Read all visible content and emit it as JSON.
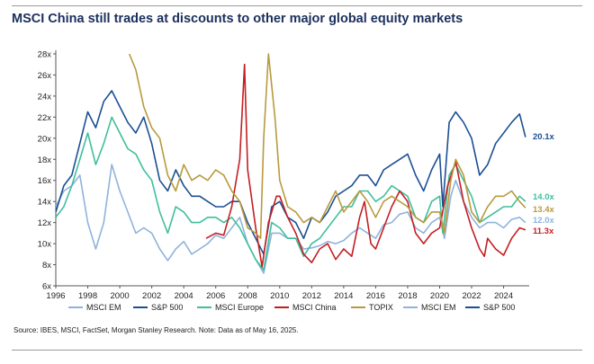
{
  "title": "MSCI China still trades at discounts to other major global equity markets",
  "source": "Source: IBES, MSCI, FactSet, Morgan Stanley Research. Note: Data as of May 16, 2025.",
  "colors": {
    "msci_em": "#8fb3dd",
    "sp500": "#1b4f93",
    "msci_europe": "#3fbf9b",
    "msci_china": "#c41e22",
    "topix": "#b89a3e"
  },
  "chart_data": {
    "type": "line",
    "title": "MSCI China still trades at discounts to other major global equity markets",
    "xlabel": "",
    "ylabel": "",
    "xlim": [
      1996,
      2025.6
    ],
    "ylim": [
      6,
      28
    ],
    "x_ticks": [
      "1996",
      "1998",
      "2000",
      "2002",
      "2004",
      "2006",
      "2008",
      "2010",
      "2012",
      "2014",
      "2016",
      "2018",
      "2020",
      "2022",
      "2024"
    ],
    "y_ticks": [
      "6x",
      "8x",
      "10x",
      "12x",
      "14x",
      "16x",
      "18x",
      "20x",
      "22x",
      "24x",
      "26x",
      "28x"
    ],
    "grid": false,
    "legend_position": "bottom",
    "legend": [
      "MSCI EM",
      "S&P 500",
      "MSCI Europe",
      "MSCI China",
      "TOPIX",
      "MSCI EM",
      "S&P 500"
    ],
    "end_labels": [
      {
        "text": "20.1x",
        "series": "S&P 500",
        "value": 20.1
      },
      {
        "text": "14.0x",
        "series": "MSCI Europe",
        "value": 14.0
      },
      {
        "text": "13.4x",
        "series": "TOPIX",
        "value": 13.4
      },
      {
        "text": "12.0x",
        "series": "MSCI EM",
        "value": 12.0
      },
      {
        "text": "11.3x",
        "series": "MSCI China",
        "value": 11.3
      }
    ],
    "series": [
      {
        "name": "MSCI EM",
        "color": "#8fb3dd",
        "points": [
          [
            1996,
            13.5
          ],
          [
            1996.5,
            15.0
          ],
          [
            1997,
            15.5
          ],
          [
            1997.5,
            16.5
          ],
          [
            1998,
            12.0
          ],
          [
            1998.5,
            9.5
          ],
          [
            1999,
            12.0
          ],
          [
            1999.5,
            17.5
          ],
          [
            2000,
            15.0
          ],
          [
            2000.5,
            13.0
          ],
          [
            2001,
            11.0
          ],
          [
            2001.5,
            11.5
          ],
          [
            2002,
            11.0
          ],
          [
            2002.5,
            9.5
          ],
          [
            2003,
            8.4
          ],
          [
            2003.5,
            9.5
          ],
          [
            2004,
            10.2
          ],
          [
            2004.5,
            9.0
          ],
          [
            2005,
            9.5
          ],
          [
            2005.5,
            10.0
          ],
          [
            2006,
            10.8
          ],
          [
            2006.5,
            10.5
          ],
          [
            2007,
            11.5
          ],
          [
            2007.5,
            12.5
          ],
          [
            2008,
            10.0
          ],
          [
            2008.5,
            8.5
          ],
          [
            2009,
            7.2
          ],
          [
            2009.5,
            11.0
          ],
          [
            2010,
            11.0
          ],
          [
            2010.5,
            10.5
          ],
          [
            2011,
            10.5
          ],
          [
            2011.5,
            9.5
          ],
          [
            2012,
            9.6
          ],
          [
            2012.5,
            9.8
          ],
          [
            2013,
            10.2
          ],
          [
            2013.5,
            10.0
          ],
          [
            2014,
            10.3
          ],
          [
            2014.5,
            11.0
          ],
          [
            2015,
            11.5
          ],
          [
            2015.5,
            11.0
          ],
          [
            2016,
            10.5
          ],
          [
            2016.5,
            11.8
          ],
          [
            2017,
            12.0
          ],
          [
            2017.5,
            12.8
          ],
          [
            2018,
            13.0
          ],
          [
            2018.5,
            11.5
          ],
          [
            2019,
            11.0
          ],
          [
            2019.5,
            12.0
          ],
          [
            2020,
            12.5
          ],
          [
            2020.3,
            10.5
          ],
          [
            2020.7,
            14.5
          ],
          [
            2021,
            16.0
          ],
          [
            2021.5,
            14.0
          ],
          [
            2022,
            12.5
          ],
          [
            2022.5,
            11.5
          ],
          [
            2023,
            12.0
          ],
          [
            2023.5,
            12.0
          ],
          [
            2024,
            11.5
          ],
          [
            2024.5,
            12.3
          ],
          [
            2025,
            12.5
          ],
          [
            2025.37,
            12.0
          ]
        ]
      },
      {
        "name": "S&P 500",
        "color": "#1b4f93",
        "points": [
          [
            1996,
            13.0
          ],
          [
            1996.5,
            15.5
          ],
          [
            1997,
            16.5
          ],
          [
            1997.5,
            19.5
          ],
          [
            1998,
            22.5
          ],
          [
            1998.5,
            21.0
          ],
          [
            1999,
            23.5
          ],
          [
            1999.5,
            24.5
          ],
          [
            2000,
            23.0
          ],
          [
            2000.5,
            21.5
          ],
          [
            2001,
            20.5
          ],
          [
            2001.5,
            22.0
          ],
          [
            2002,
            19.5
          ],
          [
            2002.5,
            16.0
          ],
          [
            2003,
            15.0
          ],
          [
            2003.5,
            17.0
          ],
          [
            2004,
            15.5
          ],
          [
            2004.5,
            14.5
          ],
          [
            2005,
            14.5
          ],
          [
            2005.5,
            14.0
          ],
          [
            2006,
            13.5
          ],
          [
            2006.5,
            13.5
          ],
          [
            2007,
            14.0
          ],
          [
            2007.5,
            14.0
          ],
          [
            2008,
            12.0
          ],
          [
            2008.5,
            10.5
          ],
          [
            2009,
            9.0
          ],
          [
            2009.5,
            13.5
          ],
          [
            2010,
            14.0
          ],
          [
            2010.5,
            12.5
          ],
          [
            2011,
            12.0
          ],
          [
            2011.5,
            10.5
          ],
          [
            2012,
            12.5
          ],
          [
            2012.5,
            12.0
          ],
          [
            2013,
            13.0
          ],
          [
            2013.5,
            14.5
          ],
          [
            2014,
            15.0
          ],
          [
            2014.5,
            15.5
          ],
          [
            2015,
            16.5
          ],
          [
            2015.5,
            16.5
          ],
          [
            2016,
            15.5
          ],
          [
            2016.5,
            17.0
          ],
          [
            2017,
            17.5
          ],
          [
            2017.5,
            18.0
          ],
          [
            2018,
            18.5
          ],
          [
            2018.5,
            16.5
          ],
          [
            2019,
            15.0
          ],
          [
            2019.5,
            17.0
          ],
          [
            2020,
            18.5
          ],
          [
            2020.2,
            13.5
          ],
          [
            2020.6,
            21.5
          ],
          [
            2021,
            22.5
          ],
          [
            2021.5,
            21.5
          ],
          [
            2022,
            20.0
          ],
          [
            2022.5,
            16.5
          ],
          [
            2023,
            17.5
          ],
          [
            2023.5,
            19.5
          ],
          [
            2024,
            20.5
          ],
          [
            2024.5,
            21.5
          ],
          [
            2025,
            22.3
          ],
          [
            2025.37,
            20.1
          ]
        ]
      },
      {
        "name": "MSCI Europe",
        "color": "#3fbf9b",
        "points": [
          [
            1996,
            12.5
          ],
          [
            1996.5,
            13.5
          ],
          [
            1997,
            15.5
          ],
          [
            1997.5,
            18.0
          ],
          [
            1998,
            20.5
          ],
          [
            1998.5,
            17.5
          ],
          [
            1999,
            19.5
          ],
          [
            1999.5,
            22.0
          ],
          [
            2000,
            20.5
          ],
          [
            2000.5,
            19.0
          ],
          [
            2001,
            18.5
          ],
          [
            2001.5,
            17.0
          ],
          [
            2002,
            16.0
          ],
          [
            2002.5,
            13.0
          ],
          [
            2003,
            11.0
          ],
          [
            2003.5,
            13.5
          ],
          [
            2004,
            13.0
          ],
          [
            2004.5,
            12.0
          ],
          [
            2005,
            12.0
          ],
          [
            2005.5,
            12.5
          ],
          [
            2006,
            12.5
          ],
          [
            2006.5,
            12.0
          ],
          [
            2007,
            12.5
          ],
          [
            2007.5,
            11.5
          ],
          [
            2008,
            10.0
          ],
          [
            2008.5,
            8.5
          ],
          [
            2009,
            7.5
          ],
          [
            2009.5,
            12.0
          ],
          [
            2010,
            11.5
          ],
          [
            2010.5,
            10.5
          ],
          [
            2011,
            10.5
          ],
          [
            2011.5,
            8.8
          ],
          [
            2012,
            10.0
          ],
          [
            2012.5,
            10.5
          ],
          [
            2013,
            11.5
          ],
          [
            2013.5,
            12.5
          ],
          [
            2014,
            13.5
          ],
          [
            2014.5,
            13.5
          ],
          [
            2015,
            15.0
          ],
          [
            2015.5,
            15.0
          ],
          [
            2016,
            14.0
          ],
          [
            2016.5,
            14.5
          ],
          [
            2017,
            15.5
          ],
          [
            2017.5,
            15.0
          ],
          [
            2018,
            14.5
          ],
          [
            2018.5,
            12.5
          ],
          [
            2019,
            12.0
          ],
          [
            2019.5,
            14.0
          ],
          [
            2020,
            14.5
          ],
          [
            2020.2,
            11.0
          ],
          [
            2020.6,
            16.5
          ],
          [
            2021,
            17.5
          ],
          [
            2021.5,
            16.0
          ],
          [
            2022,
            14.5
          ],
          [
            2022.5,
            12.0
          ],
          [
            2023,
            12.5
          ],
          [
            2023.5,
            13.0
          ],
          [
            2024,
            13.5
          ],
          [
            2024.5,
            13.5
          ],
          [
            2025,
            14.5
          ],
          [
            2025.37,
            14.0
          ]
        ]
      },
      {
        "name": "MSCI China",
        "color": "#c41e22",
        "points": [
          [
            2005.4,
            10.5
          ],
          [
            2006,
            11.0
          ],
          [
            2006.5,
            10.8
          ],
          [
            2007,
            13.5
          ],
          [
            2007.5,
            18.0
          ],
          [
            2007.8,
            27.0
          ],
          [
            2008,
            17.0
          ],
          [
            2008.5,
            11.5
          ],
          [
            2008.9,
            7.8
          ],
          [
            2009.3,
            12.0
          ],
          [
            2009.8,
            14.5
          ],
          [
            2010,
            14.5
          ],
          [
            2010.5,
            12.5
          ],
          [
            2011,
            11.0
          ],
          [
            2011.5,
            9.0
          ],
          [
            2012,
            8.2
          ],
          [
            2012.5,
            9.5
          ],
          [
            2013,
            10.0
          ],
          [
            2013.5,
            8.5
          ],
          [
            2014,
            9.5
          ],
          [
            2014.5,
            8.8
          ],
          [
            2015,
            12.5
          ],
          [
            2015.3,
            14.0
          ],
          [
            2015.7,
            10.0
          ],
          [
            2016,
            9.5
          ],
          [
            2016.5,
            11.5
          ],
          [
            2017,
            13.5
          ],
          [
            2017.5,
            15.0
          ],
          [
            2018,
            14.0
          ],
          [
            2018.5,
            11.0
          ],
          [
            2019,
            10.0
          ],
          [
            2019.5,
            11.0
          ],
          [
            2020,
            11.5
          ],
          [
            2020.5,
            15.5
          ],
          [
            2021,
            17.8
          ],
          [
            2021.5,
            14.0
          ],
          [
            2022,
            11.5
          ],
          [
            2022.5,
            9.5
          ],
          [
            2022.8,
            8.8
          ],
          [
            2023,
            10.5
          ],
          [
            2023.5,
            9.5
          ],
          [
            2024,
            8.9
          ],
          [
            2024.5,
            10.5
          ],
          [
            2025,
            11.5
          ],
          [
            2025.37,
            11.3
          ]
        ]
      },
      {
        "name": "TOPIX",
        "color": "#b89a3e",
        "points": [
          [
            2000.6,
            28.0
          ],
          [
            2001,
            26.5
          ],
          [
            2001.5,
            23.0
          ],
          [
            2002,
            21.0
          ],
          [
            2002.5,
            20.0
          ],
          [
            2003,
            16.5
          ],
          [
            2003.5,
            15.0
          ],
          [
            2004,
            17.5
          ],
          [
            2004.5,
            16.0
          ],
          [
            2005,
            16.5
          ],
          [
            2005.5,
            16.0
          ],
          [
            2006,
            17.0
          ],
          [
            2006.5,
            16.5
          ],
          [
            2007,
            15.0
          ],
          [
            2007.5,
            14.0
          ],
          [
            2008,
            11.5
          ],
          [
            2008.5,
            11.0
          ],
          [
            2008.8,
            10.5
          ],
          [
            2009,
            20.0
          ],
          [
            2009.3,
            28.0
          ],
          [
            2009.7,
            22.0
          ],
          [
            2010,
            16.0
          ],
          [
            2010.5,
            13.5
          ],
          [
            2011,
            13.0
          ],
          [
            2011.5,
            12.0
          ],
          [
            2012,
            12.5
          ],
          [
            2012.5,
            12.0
          ],
          [
            2013,
            13.5
          ],
          [
            2013.5,
            15.0
          ],
          [
            2014,
            13.0
          ],
          [
            2014.5,
            14.0
          ],
          [
            2015,
            15.0
          ],
          [
            2015.5,
            14.0
          ],
          [
            2016,
            12.5
          ],
          [
            2016.5,
            14.0
          ],
          [
            2017,
            14.5
          ],
          [
            2017.5,
            14.0
          ],
          [
            2018,
            13.5
          ],
          [
            2018.5,
            12.5
          ],
          [
            2019,
            12.0
          ],
          [
            2019.5,
            13.0
          ],
          [
            2020,
            13.0
          ],
          [
            2020.3,
            11.0
          ],
          [
            2020.7,
            16.0
          ],
          [
            2021,
            18.0
          ],
          [
            2021.5,
            16.5
          ],
          [
            2022,
            13.0
          ],
          [
            2022.5,
            12.0
          ],
          [
            2023,
            13.5
          ],
          [
            2023.5,
            14.5
          ],
          [
            2024,
            14.5
          ],
          [
            2024.5,
            15.0
          ],
          [
            2025,
            14.0
          ],
          [
            2025.37,
            13.4
          ]
        ]
      }
    ]
  }
}
